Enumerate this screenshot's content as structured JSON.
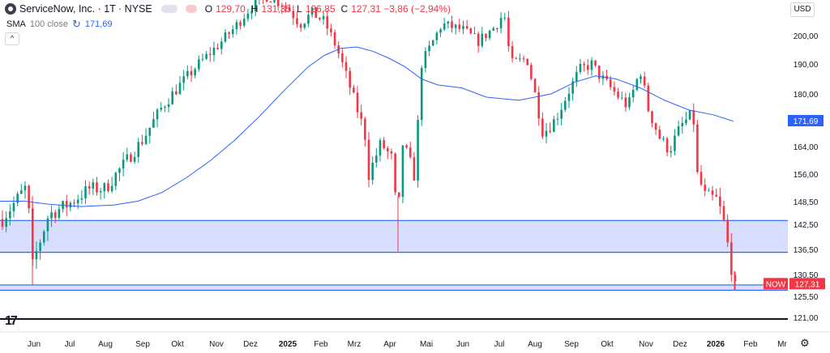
{
  "header": {
    "symbol": "ServiceNow, Inc. · 1T · NYSE",
    "o_label": "O",
    "o_value": "129,70",
    "h_label": "H",
    "h_value": "131,35",
    "l_label": "L",
    "l_value": "126,85",
    "c_label": "C",
    "c_value": "127,31 −3,86 (−2,94%)"
  },
  "indicator": {
    "name": "SMA",
    "params": "100 close",
    "value": "171,69"
  },
  "currency": "USD",
  "collapse_glyph": "^",
  "tv_logo": "17",
  "settings_glyph": "⚙",
  "colors": {
    "up": "#089981",
    "down": "#f23645",
    "sma": "#2962ff",
    "zone_fill": "#d7deff",
    "zone_line": "#2962ff",
    "price_tag": "#f23645"
  },
  "chart_data": {
    "type": "candlestick",
    "y_ticks": [
      "200,00",
      "190,00",
      "180,00",
      "171,69",
      "164,00",
      "156,00",
      "148,50",
      "142,50",
      "136,50",
      "130,50",
      "125,50",
      "121,00"
    ],
    "x_ticks": [
      "Jun",
      "Jul",
      "Aug",
      "Sep",
      "Okt",
      "Nov",
      "Dez",
      "2025",
      "Feb",
      "Mrz",
      "Apr",
      "Mai",
      "Jun",
      "Jul",
      "Aug",
      "Sep",
      "Okt",
      "Nov",
      "Dez",
      "2026",
      "Feb",
      "Mr"
    ],
    "last_price": {
      "label": "NOW",
      "value": "127,31"
    },
    "sma_label": "171,69",
    "zones": [
      {
        "from": 135.8,
        "to": 143.5
      },
      {
        "from": 126.9,
        "to": 128.1
      }
    ],
    "horizontal_line": 126.9,
    "closes_by_month": [
      {
        "month": "Jun",
        "low": 128.0,
        "close_start": 143,
        "close_end": 150
      },
      {
        "month": "Jul",
        "close": 152
      },
      {
        "month": "Aug",
        "close": 163
      },
      {
        "month": "Sep",
        "close": 180
      },
      {
        "month": "Okt",
        "close": 188
      },
      {
        "month": "Nov",
        "close": 205
      },
      {
        "month": "Dez",
        "close": 210
      },
      {
        "month": "2025",
        "close": 205
      },
      {
        "month": "Feb",
        "close": 198
      },
      {
        "month": "Mrz",
        "close": 165
      },
      {
        "month": "Apr",
        "low": 135.5,
        "close": 155
      },
      {
        "month": "Mai",
        "close": 196
      },
      {
        "month": "Jun",
        "close": 205
      },
      {
        "month": "Jul",
        "close": 200
      },
      {
        "month": "Aug",
        "close": 175
      },
      {
        "month": "Sep",
        "close": 186
      },
      {
        "month": "Okt",
        "close": 183
      },
      {
        "month": "Nov",
        "close": 180
      },
      {
        "month": "Dez",
        "close": 170
      },
      {
        "month": "2026",
        "close": 150
      },
      {
        "month": "Feb",
        "close": 127.31
      }
    ]
  }
}
